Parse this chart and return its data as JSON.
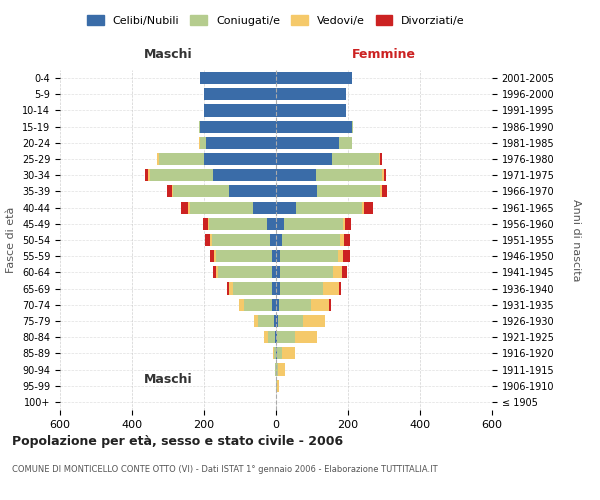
{
  "age_groups": [
    "100+",
    "95-99",
    "90-94",
    "85-89",
    "80-84",
    "75-79",
    "70-74",
    "65-69",
    "60-64",
    "55-59",
    "50-54",
    "45-49",
    "40-44",
    "35-39",
    "30-34",
    "25-29",
    "20-24",
    "15-19",
    "10-14",
    "5-9",
    "0-4"
  ],
  "birth_years": [
    "≤ 1905",
    "1906-1910",
    "1911-1915",
    "1916-1920",
    "1921-1925",
    "1926-1930",
    "1931-1935",
    "1936-1940",
    "1941-1945",
    "1946-1950",
    "1951-1955",
    "1956-1960",
    "1961-1965",
    "1966-1970",
    "1971-1975",
    "1976-1980",
    "1981-1985",
    "1986-1990",
    "1991-1995",
    "1996-2000",
    "2001-2005"
  ],
  "colors": {
    "celibi": "#3a6ca8",
    "coniugati": "#b5cc8e",
    "vedovi": "#f5c96a",
    "divorziati": "#cc2222"
  },
  "maschi": {
    "celibi": [
      0,
      0,
      0,
      1,
      2,
      5,
      10,
      10,
      12,
      12,
      18,
      25,
      65,
      130,
      175,
      200,
      195,
      210,
      200,
      200,
      210
    ],
    "coniugati": [
      0,
      1,
      3,
      5,
      20,
      45,
      80,
      110,
      150,
      155,
      160,
      160,
      175,
      155,
      175,
      125,
      15,
      5,
      0,
      0,
      0
    ],
    "vedovi": [
      0,
      0,
      1,
      3,
      10,
      10,
      12,
      10,
      5,
      5,
      5,
      5,
      5,
      5,
      5,
      5,
      5,
      0,
      0,
      0,
      0
    ],
    "divorziati": [
      0,
      0,
      0,
      0,
      0,
      0,
      0,
      5,
      8,
      12,
      15,
      12,
      20,
      12,
      10,
      0,
      0,
      0,
      0,
      0,
      0
    ]
  },
  "femmine": {
    "nubili": [
      0,
      0,
      1,
      2,
      3,
      5,
      8,
      10,
      12,
      12,
      18,
      22,
      55,
      115,
      110,
      155,
      175,
      210,
      195,
      195,
      210
    ],
    "coniugati": [
      0,
      2,
      5,
      15,
      50,
      70,
      90,
      120,
      145,
      160,
      160,
      165,
      185,
      175,
      185,
      130,
      35,
      5,
      0,
      0,
      0
    ],
    "vedovi": [
      1,
      5,
      20,
      35,
      60,
      60,
      50,
      45,
      25,
      15,
      10,
      5,
      5,
      5,
      5,
      5,
      0,
      0,
      0,
      0,
      0
    ],
    "divorziati": [
      0,
      0,
      0,
      0,
      0,
      0,
      5,
      5,
      15,
      18,
      18,
      15,
      25,
      12,
      5,
      5,
      0,
      0,
      0,
      0,
      0
    ]
  },
  "xlim": 600,
  "title": "Popolazione per età, sesso e stato civile - 2006",
  "subtitle": "COMUNE DI MONTICELLO CONTE OTTO (VI) - Dati ISTAT 1° gennaio 2006 - Elaborazione TUTTITALIA.IT",
  "ylabel_left": "Fasce di età",
  "ylabel_right": "Anni di nascita",
  "xlabel_maschi": "Maschi",
  "xlabel_femmine": "Femmine",
  "legend_labels": [
    "Celibi/Nubili",
    "Coniugati/e",
    "Vedovi/e",
    "Divorziati/e"
  ],
  "bg_color": "#ffffff",
  "grid_color": "#cccccc"
}
